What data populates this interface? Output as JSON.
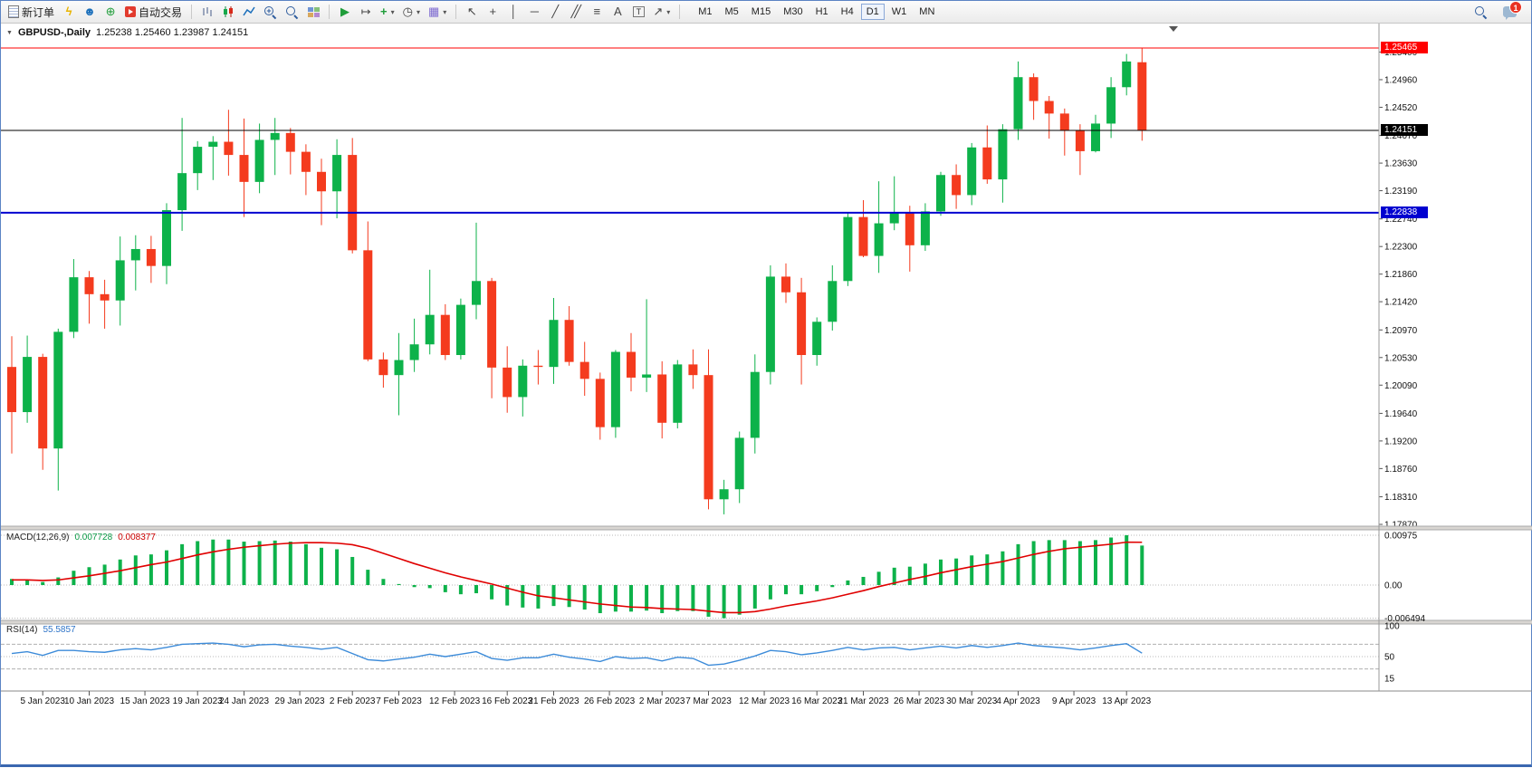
{
  "window": {
    "notifications_badge": "1"
  },
  "icons": {
    "lightning": "ϟ",
    "person": "☻",
    "globe": "⊕",
    "autoscroll": "▶",
    "shift": "↦",
    "plus": "+",
    "clock": "◷",
    "template": "▦",
    "cursor": "↖",
    "crosshair": "+",
    "vline": "│",
    "hline": "─",
    "trend": "╱",
    "channel": "╱╱",
    "fibo": "≡",
    "text": "A",
    "label": "T",
    "arrow": "↗",
    "caret": "▾",
    "dropdown": "▼"
  },
  "toolbar": {
    "new_order": "新订单",
    "autotrading": "自动交易",
    "timeframes": [
      "M1",
      "M5",
      "M15",
      "M30",
      "H1",
      "H4",
      "D1",
      "W1",
      "MN"
    ],
    "active_timeframe": "D1"
  },
  "chart": {
    "symbol_period": "GBPUSD-,Daily",
    "ohlc_text": "1.25238 1.25460 1.23987 1.24151"
  },
  "chart_data": {
    "type": "candlestick",
    "symbol": "GBPUSD-",
    "period": "Daily",
    "current": {
      "open": 1.25238,
      "high": 1.2546,
      "low": 1.23987,
      "close": 1.24151
    },
    "y_axis_labels": [
      "1.25400",
      "1.24960",
      "1.24520",
      "1.24070",
      "1.23630",
      "1.23190",
      "1.22740",
      "1.22300",
      "1.21860",
      "1.21420",
      "1.20970",
      "1.20530",
      "1.20090",
      "1.19640",
      "1.19200",
      "1.18760",
      "1.18310",
      "1.17870"
    ],
    "x_axis_labels": [
      {
        "label": "5 Jan 2023",
        "i": 2
      },
      {
        "label": "10 Jan 2023",
        "i": 5
      },
      {
        "label": "15 Jan 2023",
        "i": 8.6
      },
      {
        "label": "19 Jan 2023",
        "i": 12
      },
      {
        "label": "24 Jan 2023",
        "i": 15
      },
      {
        "label": "29 Jan 2023",
        "i": 18.6
      },
      {
        "label": "2 Feb 2023",
        "i": 22
      },
      {
        "label": "7 Feb 2023",
        "i": 25
      },
      {
        "label": "12 Feb 2023",
        "i": 28.6
      },
      {
        "label": "16 Feb 2023",
        "i": 32
      },
      {
        "label": "21 Feb 2023",
        "i": 35
      },
      {
        "label": "26 Feb 2023",
        "i": 38.6
      },
      {
        "label": "2 Mar 2023",
        "i": 42
      },
      {
        "label": "7 Mar 2023",
        "i": 45
      },
      {
        "label": "12 Mar 2023",
        "i": 48.6
      },
      {
        "label": "16 Mar 2023",
        "i": 52
      },
      {
        "label": "21 Mar 2023",
        "i": 55
      },
      {
        "label": "26 Mar 2023",
        "i": 58.6
      },
      {
        "label": "30 Mar 2023",
        "i": 62
      },
      {
        "label": "4 Apr 2023",
        "i": 65
      },
      {
        "label": "9 Apr 2023",
        "i": 68.6
      },
      {
        "label": "13 Apr 2023",
        "i": 72
      }
    ],
    "price_lines": [
      {
        "label": "1.25465",
        "price": 1.25465,
        "color": "#ff0000"
      },
      {
        "label": "1.24151",
        "price": 1.24151,
        "color": "#000000"
      },
      {
        "label": "1.22838",
        "price": 1.22838,
        "color": "#0000d0"
      }
    ],
    "candles": [
      [
        1.2038,
        1.2087,
        1.19,
        1.1966
      ],
      [
        1.1966,
        1.2088,
        1.1949,
        1.2054
      ],
      [
        1.2054,
        1.2059,
        1.1874,
        1.1908
      ],
      [
        1.1908,
        1.2099,
        1.1841,
        1.2094
      ],
      [
        1.2094,
        1.221,
        1.2084,
        1.2181
      ],
      [
        1.2181,
        1.2191,
        1.2107,
        1.2154
      ],
      [
        1.2154,
        1.2177,
        1.2099,
        1.2144
      ],
      [
        1.2144,
        1.2246,
        1.2104,
        1.2208
      ],
      [
        1.2208,
        1.2248,
        1.216,
        1.2226
      ],
      [
        1.2226,
        1.2247,
        1.2172,
        1.2199
      ],
      [
        1.2199,
        1.2299,
        1.217,
        1.2288
      ],
      [
        1.2288,
        1.2435,
        1.2255,
        1.2347
      ],
      [
        1.2347,
        1.2398,
        1.232,
        1.2389
      ],
      [
        1.2389,
        1.2406,
        1.2336,
        1.2397
      ],
      [
        1.2397,
        1.2448,
        1.2343,
        1.2376
      ],
      [
        1.2376,
        1.2434,
        1.2277,
        1.2333
      ],
      [
        1.2333,
        1.2426,
        1.2315,
        1.24
      ],
      [
        1.24,
        1.2435,
        1.2344,
        1.2411
      ],
      [
        1.2411,
        1.2419,
        1.2345,
        1.2381
      ],
      [
        1.2381,
        1.2393,
        1.2312,
        1.2349
      ],
      [
        1.2349,
        1.237,
        1.2264,
        1.2318
      ],
      [
        1.2318,
        1.2401,
        1.2275,
        1.2376
      ],
      [
        1.2376,
        1.2403,
        1.2219,
        1.2224
      ],
      [
        1.2224,
        1.227,
        1.2047,
        1.205
      ],
      [
        1.205,
        1.2061,
        1.2005,
        1.2025
      ],
      [
        1.2025,
        1.2092,
        1.1961,
        1.2049
      ],
      [
        1.2049,
        1.2115,
        1.203,
        1.2074
      ],
      [
        1.2074,
        1.2193,
        1.2058,
        1.2121
      ],
      [
        1.2121,
        1.2138,
        1.2049,
        1.2057
      ],
      [
        1.2057,
        1.2147,
        1.205,
        1.2137
      ],
      [
        1.2137,
        1.2268,
        1.2114,
        1.2175
      ],
      [
        1.2175,
        1.218,
        1.1988,
        1.2037
      ],
      [
        1.2037,
        1.2071,
        1.1965,
        1.199
      ],
      [
        1.199,
        1.205,
        1.1959,
        1.204
      ],
      [
        1.204,
        1.2065,
        1.201,
        1.2038
      ],
      [
        1.2038,
        1.2148,
        1.2011,
        1.2113
      ],
      [
        1.2113,
        1.2135,
        1.204,
        1.2046
      ],
      [
        1.2046,
        1.2078,
        1.1992,
        1.2019
      ],
      [
        1.2019,
        1.2029,
        1.1922,
        1.1942
      ],
      [
        1.1942,
        1.2065,
        1.1925,
        1.2062
      ],
      [
        1.2062,
        1.2092,
        1.1999,
        1.2021
      ],
      [
        1.2021,
        1.2146,
        1.1998,
        1.2026
      ],
      [
        1.2026,
        1.2047,
        1.1924,
        1.1949
      ],
      [
        1.1949,
        1.2049,
        1.194,
        1.2042
      ],
      [
        1.2042,
        1.2066,
        1.2003,
        1.2025
      ],
      [
        1.2025,
        1.2066,
        1.1811,
        1.1827
      ],
      [
        1.1827,
        1.1858,
        1.1803,
        1.1843
      ],
      [
        1.1843,
        1.1935,
        1.1821,
        1.1925
      ],
      [
        1.1925,
        1.2058,
        1.19,
        1.203
      ],
      [
        1.203,
        1.22,
        1.201,
        1.2182
      ],
      [
        1.2182,
        1.2203,
        1.214,
        1.2157
      ],
      [
        1.2157,
        1.218,
        1.201,
        1.2057
      ],
      [
        1.2057,
        1.2117,
        1.204,
        1.211
      ],
      [
        1.211,
        1.22,
        1.2096,
        1.2175
      ],
      [
        1.2175,
        1.2284,
        1.2167,
        1.2277
      ],
      [
        1.2277,
        1.2304,
        1.2213,
        1.2215
      ],
      [
        1.2215,
        1.2334,
        1.2188,
        1.2267
      ],
      [
        1.2267,
        1.2342,
        1.2256,
        1.2285
      ],
      [
        1.2285,
        1.2295,
        1.219,
        1.2232
      ],
      [
        1.2232,
        1.2299,
        1.2223,
        1.2286
      ],
      [
        1.2286,
        1.2349,
        1.2279,
        1.2344
      ],
      [
        1.2344,
        1.2361,
        1.229,
        1.2312
      ],
      [
        1.2312,
        1.2395,
        1.2296,
        1.2388
      ],
      [
        1.2388,
        1.2423,
        1.233,
        1.2337
      ],
      [
        1.2337,
        1.2425,
        1.23,
        1.2417
      ],
      [
        1.2417,
        1.2525,
        1.24,
        1.25
      ],
      [
        1.25,
        1.2506,
        1.2432,
        1.2462
      ],
      [
        1.2462,
        1.247,
        1.2402,
        1.2442
      ],
      [
        1.2442,
        1.245,
        1.2375,
        1.2415
      ],
      [
        1.2415,
        1.2425,
        1.2344,
        1.2382
      ],
      [
        1.2382,
        1.244,
        1.238,
        1.2426
      ],
      [
        1.2426,
        1.25,
        1.2403,
        1.2484
      ],
      [
        1.2484,
        1.2537,
        1.2471,
        1.2525
      ],
      [
        1.25238,
        1.2546,
        1.23987,
        1.24151
      ]
    ],
    "macd": {
      "label": "MACD(12,26,9)",
      "value_main": "0.007728",
      "value_signal": "0.008377",
      "axis_labels": [
        "0.00975",
        "0.00",
        "-0.006494"
      ],
      "axis_values": [
        0.00975,
        0,
        -0.006494
      ],
      "histogram": [
        0.0012,
        0.001,
        0.0006,
        0.0015,
        0.0028,
        0.0035,
        0.004,
        0.005,
        0.0058,
        0.006,
        0.0068,
        0.008,
        0.0086,
        0.0089,
        0.0089,
        0.0085,
        0.0086,
        0.0087,
        0.0085,
        0.008,
        0.0073,
        0.007,
        0.0055,
        0.003,
        0.0012,
        0.0002,
        -0.0004,
        -0.0006,
        -0.0014,
        -0.0018,
        -0.0016,
        -0.0028,
        -0.004,
        -0.0044,
        -0.0046,
        -0.0041,
        -0.0043,
        -0.0048,
        -0.0055,
        -0.0052,
        -0.0052,
        -0.005,
        -0.0055,
        -0.0051,
        -0.0051,
        -0.0062,
        -0.0065,
        -0.0058,
        -0.0046,
        -0.0028,
        -0.0018,
        -0.0018,
        -0.0012,
        -0.0004,
        0.0009,
        0.0016,
        0.0026,
        0.0034,
        0.0036,
        0.0042,
        0.005,
        0.0052,
        0.0058,
        0.006,
        0.0066,
        0.008,
        0.0086,
        0.0088,
        0.0088,
        0.0086,
        0.0088,
        0.0093,
        0.00975,
        0.007728
      ],
      "signal": [
        0.001,
        0.001,
        0.0009,
        0.001,
        0.0014,
        0.0018,
        0.0023,
        0.0028,
        0.0034,
        0.004,
        0.0045,
        0.0052,
        0.0059,
        0.0065,
        0.007,
        0.0074,
        0.0077,
        0.008,
        0.0082,
        0.0083,
        0.0083,
        0.0082,
        0.0079,
        0.0072,
        0.0062,
        0.0052,
        0.0042,
        0.0033,
        0.0024,
        0.0016,
        0.0009,
        0.0002,
        -0.0006,
        -0.0014,
        -0.0021,
        -0.0025,
        -0.0029,
        -0.0033,
        -0.0037,
        -0.004,
        -0.0043,
        -0.0044,
        -0.0046,
        -0.0047,
        -0.0048,
        -0.0051,
        -0.0054,
        -0.0054,
        -0.0052,
        -0.0047,
        -0.0041,
        -0.0036,
        -0.0031,
        -0.0025,
        -0.0018,
        -0.0011,
        -0.0003,
        0.0004,
        0.0011,
        0.0017,
        0.0024,
        0.003,
        0.0036,
        0.0041,
        0.0046,
        0.0053,
        0.006,
        0.0066,
        0.0071,
        0.0074,
        0.0077,
        0.008,
        0.0084,
        0.008377
      ]
    },
    "rsi": {
      "label": "RSI(14)",
      "value": "55.5857",
      "axis_labels": [
        "100",
        "50",
        "15"
      ],
      "axis_values": [
        100,
        50,
        15
      ],
      "levels": [
        70,
        30
      ],
      "values": [
        55,
        58,
        52,
        60,
        60,
        58,
        57,
        61,
        63,
        61,
        65,
        70,
        71,
        72,
        70,
        66,
        69,
        70,
        67,
        65,
        62,
        65,
        55,
        45,
        43,
        46,
        49,
        54,
        50,
        54,
        58,
        47,
        44,
        48,
        48,
        54,
        49,
        46,
        42,
        50,
        47,
        48,
        43,
        49,
        47,
        36,
        38,
        44,
        51,
        60,
        58,
        53,
        56,
        60,
        65,
        61,
        64,
        65,
        61,
        64,
        67,
        64,
        68,
        65,
        68,
        72,
        68,
        66,
        64,
        61,
        64,
        68,
        71,
        55.59
      ]
    }
  }
}
